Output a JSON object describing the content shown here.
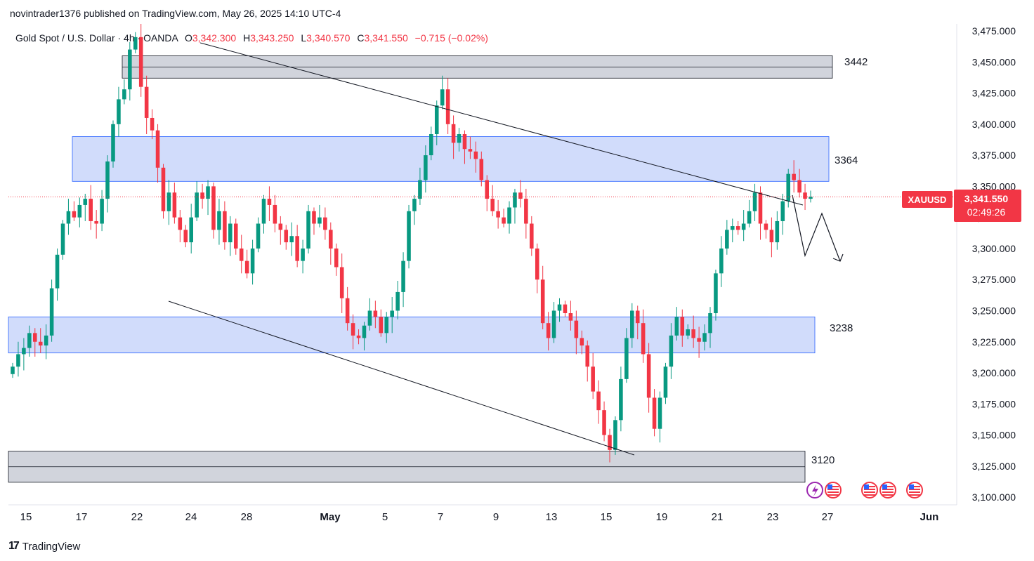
{
  "header": {
    "publisher": "novintrader1376 published on TradingView.com, May 26, 2025 14:10 UTC-4"
  },
  "legend": {
    "symbol": "Gold Spot / U.S. Dollar · 4h · OANDA",
    "o_label": "O",
    "o_value": "3,342.300",
    "h_label": "H",
    "h_value": "3,343.250",
    "l_label": "L",
    "l_value": "3,340.570",
    "c_label": "C",
    "c_value": "3,341.550",
    "change": "−0.715 (−0.02%)"
  },
  "price_badge": {
    "symbol": "XAUUSD",
    "price": "3,341.550",
    "countdown": "02:49:26"
  },
  "zone_labels": [
    "3442",
    "3364",
    "3238",
    "3120"
  ],
  "footer": {
    "brand": "TradingView"
  },
  "colors": {
    "up": "#089981",
    "down": "#f23645",
    "zone_blue_fill": "#d1dcfb",
    "zone_blue_stroke": "#2962ff",
    "zone_gray_fill": "#d1d4dc",
    "badge_bg": "#f23645"
  },
  "chart_data": {
    "type": "candlestick",
    "y_ticks": [
      "3,475.000",
      "3,450.000",
      "3,425.000",
      "3,400.000",
      "3,375.000",
      "3,350.000",
      "3,325.000",
      "3,300.000",
      "3,275.000",
      "3,250.000",
      "3,225.000",
      "3,200.000",
      "3,175.000",
      "3,150.000",
      "3,125.000",
      "3,100.000"
    ],
    "x_ticks": [
      "15",
      "17",
      "22",
      "24",
      "28",
      "May",
      "5",
      "7",
      "9",
      "13",
      "15",
      "19",
      "21",
      "23",
      "27",
      "Jun"
    ],
    "ylim": [
      3100,
      3480
    ],
    "zones": [
      {
        "label": "3442",
        "from": 3437,
        "to": 3455,
        "color": "gray"
      },
      {
        "label": "3364",
        "from": 3354,
        "to": 3390,
        "color": "blue"
      },
      {
        "label": "3238",
        "from": 3216,
        "to": 3245,
        "color": "blue"
      },
      {
        "label": "3120",
        "from": 3112,
        "to": 3137,
        "color": "gray"
      }
    ],
    "last_price": 3341.55,
    "close_series": [
      3205,
      3215,
      3220,
      3232,
      3225,
      3222,
      3230,
      3268,
      3295,
      3320,
      3330,
      3325,
      3335,
      3340,
      3322,
      3320,
      3340,
      3370,
      3400,
      3420,
      3428,
      3460,
      3470,
      3430,
      3405,
      3395,
      3365,
      3330,
      3345,
      3325,
      3315,
      3305,
      3325,
      3345,
      3340,
      3350,
      3315,
      3330,
      3305,
      3320,
      3300,
      3290,
      3280,
      3300,
      3320,
      3340,
      3335,
      3320,
      3315,
      3305,
      3310,
      3290,
      3300,
      3330,
      3320,
      3325,
      3315,
      3300,
      3285,
      3260,
      3240,
      3230,
      3228,
      3238,
      3250,
      3245,
      3232,
      3245,
      3250,
      3265,
      3290,
      3330,
      3340,
      3355,
      3375,
      3392,
      3415,
      3428,
      3400,
      3385,
      3392,
      3380,
      3378,
      3372,
      3355,
      3340,
      3330,
      3325,
      3320,
      3333,
      3345,
      3340,
      3320,
      3300,
      3275,
      3240,
      3228,
      3250,
      3255,
      3248,
      3242,
      3228,
      3222,
      3205,
      3185,
      3170,
      3150,
      3138,
      3162,
      3195,
      3228,
      3250,
      3240,
      3215,
      3180,
      3155,
      3180,
      3205,
      3230,
      3245,
      3230,
      3235,
      3228,
      3225,
      3232,
      3248,
      3280,
      3300,
      3315,
      3318,
      3315,
      3320,
      3330,
      3345,
      3320,
      3315,
      3305,
      3322,
      3338,
      3360,
      3355,
      3345,
      3340,
      3341.55
    ]
  }
}
